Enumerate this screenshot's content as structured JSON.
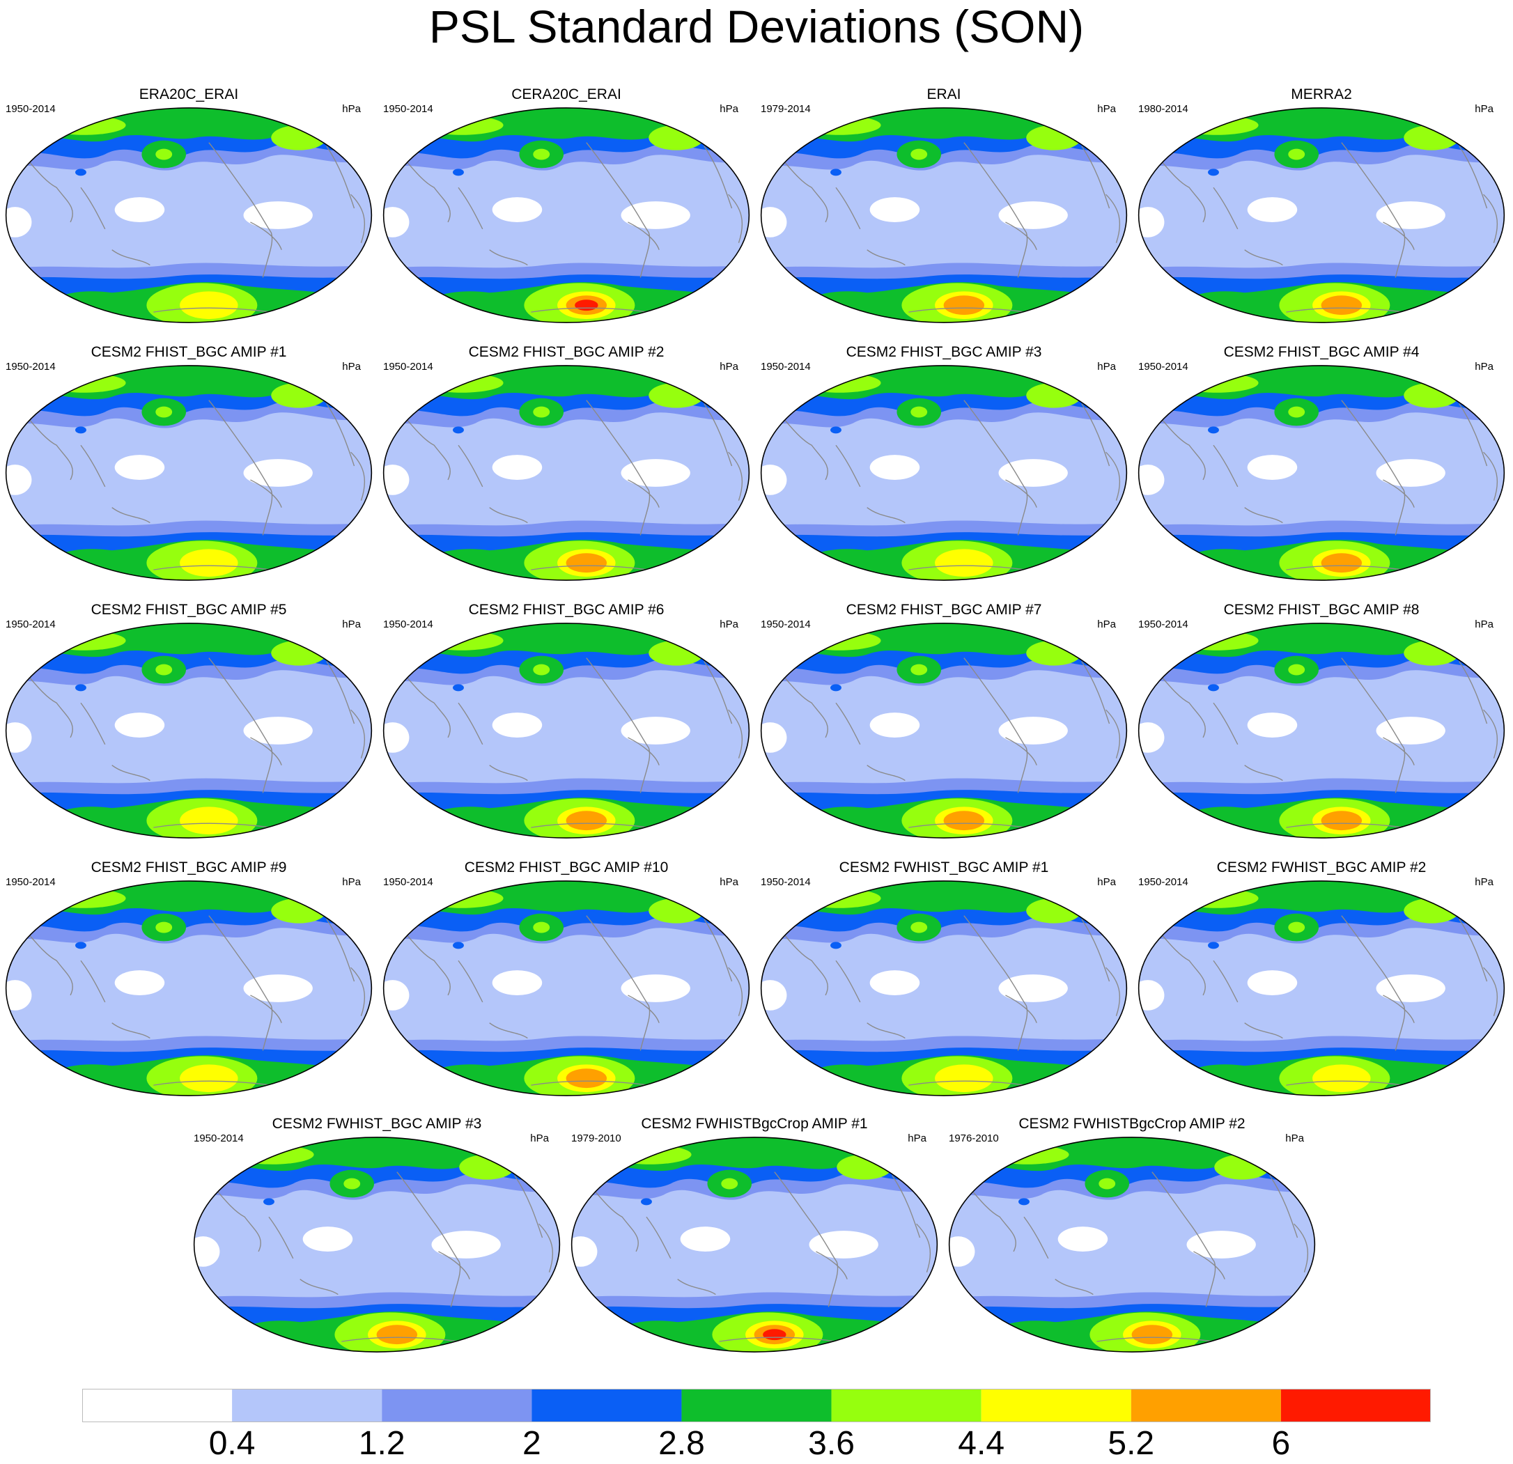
{
  "title": "PSL Standard Deviations (SON)",
  "units": "hPa",
  "colors": {
    "c0": "#ffffff",
    "c1": "#b4c6fa",
    "c2": "#7d94f2",
    "c3": "#0a5ff5",
    "c4": "#0ebe2c",
    "c5": "#96ff0e",
    "c6": "#ffff00",
    "c7": "#ffa000",
    "c8": "#ff1a00",
    "coast": "#8a8a8a",
    "frame": "#000000"
  },
  "colorbar": {
    "levels": [
      "0.4",
      "1.2",
      "2",
      "2.8",
      "3.6",
      "4.4",
      "5.2",
      "6"
    ],
    "fills": [
      "#ffffff",
      "#b4c6fa",
      "#7d94f2",
      "#0a5ff5",
      "#0ebe2c",
      "#96ff0e",
      "#ffff00",
      "#ffa000",
      "#ff1a00"
    ]
  },
  "panels": [
    {
      "title": "ERA20C_ERAI",
      "years": "1950-2014",
      "antarctic_peak": 6
    },
    {
      "title": "CERA20C_ERAI",
      "years": "1950-2014",
      "antarctic_peak": 8
    },
    {
      "title": "ERAI",
      "years": "1979-2014",
      "antarctic_peak": 7
    },
    {
      "title": "MERRA2",
      "years": "1980-2014",
      "antarctic_peak": 7
    },
    {
      "title": "CESM2 FHIST_BGC AMIP #1",
      "years": "1950-2014",
      "antarctic_peak": 6
    },
    {
      "title": "CESM2 FHIST_BGC AMIP #2",
      "years": "1950-2014",
      "antarctic_peak": 7
    },
    {
      "title": "CESM2 FHIST_BGC AMIP #3",
      "years": "1950-2014",
      "antarctic_peak": 6
    },
    {
      "title": "CESM2 FHIST_BGC AMIP #4",
      "years": "1950-2014",
      "antarctic_peak": 7
    },
    {
      "title": "CESM2 FHIST_BGC AMIP #5",
      "years": "1950-2014",
      "antarctic_peak": 6
    },
    {
      "title": "CESM2 FHIST_BGC AMIP #6",
      "years": "1950-2014",
      "antarctic_peak": 7
    },
    {
      "title": "CESM2 FHIST_BGC AMIP #7",
      "years": "1950-2014",
      "antarctic_peak": 7
    },
    {
      "title": "CESM2 FHIST_BGC AMIP #8",
      "years": "1950-2014",
      "antarctic_peak": 7
    },
    {
      "title": "CESM2 FHIST_BGC AMIP #9",
      "years": "1950-2014",
      "antarctic_peak": 6
    },
    {
      "title": "CESM2 FHIST_BGC AMIP #10",
      "years": "1950-2014",
      "antarctic_peak": 7
    },
    {
      "title": "CESM2 FWHIST_BGC AMIP #1",
      "years": "1950-2014",
      "antarctic_peak": 6
    },
    {
      "title": "CESM2 FWHIST_BGC AMIP #2",
      "years": "1950-2014",
      "antarctic_peak": 6
    },
    {
      "title": "CESM2 FWHIST_BGC AMIP #3",
      "years": "1950-2014",
      "antarctic_peak": 7
    },
    {
      "title": "CESM2 FWHISTBgcCrop AMIP #1",
      "years": "1979-2010",
      "antarctic_peak": 8
    },
    {
      "title": "CESM2 FWHISTBgcCrop AMIP #2",
      "years": "1976-2010",
      "antarctic_peak": 7
    }
  ]
}
